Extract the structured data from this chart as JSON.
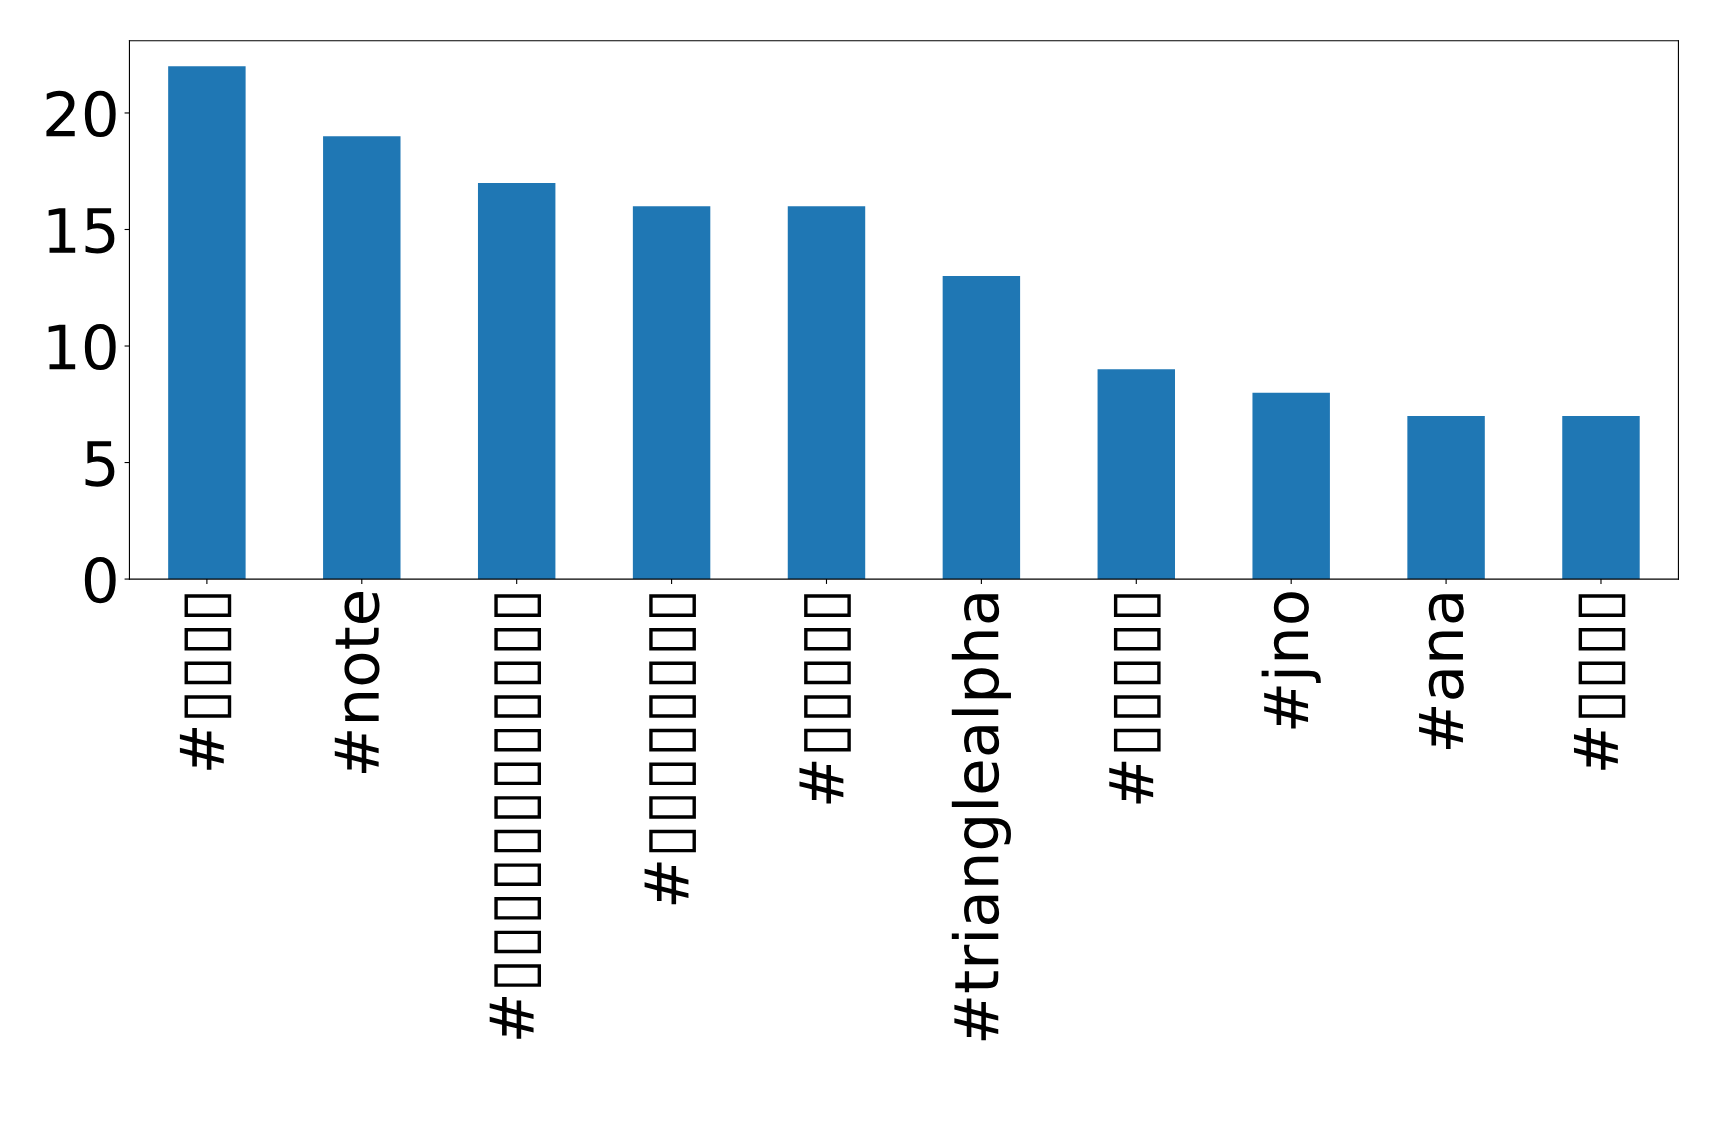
{
  "chart_data": {
    "type": "bar",
    "categories": [
      "#▯▯▯▯",
      "#note",
      "#▯▯▯▯▯▯▯▯▯▯▯▯",
      "#▯▯▯▯▯▯▯▯",
      "#▯▯▯▯▯",
      "#trianglealpha",
      "#▯▯▯▯▯",
      "#jno",
      "#ana",
      "#▯▯▯▯"
    ],
    "values": [
      22,
      19,
      17,
      16,
      16,
      13,
      9,
      8,
      7,
      7
    ],
    "color": "#1f77b4",
    "ylim": [
      0,
      23.1
    ],
    "yticks": [
      0,
      5,
      10,
      15,
      20
    ],
    "grid": false
  }
}
